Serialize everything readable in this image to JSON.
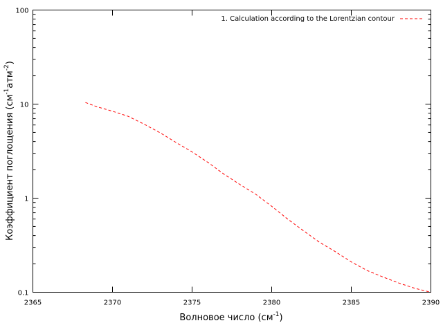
{
  "chart_data": {
    "type": "line",
    "title": "",
    "xlabel": {
      "main": "Волновое число (см",
      "sup": "-1",
      "tail": ")"
    },
    "ylabel": {
      "main": "Коэффициент поглощения (см",
      "sup1": "-1",
      "mid": "атм",
      "sup2": "-2",
      "tail": ")"
    },
    "xlim": [
      2365,
      2390
    ],
    "ylim": [
      0.1,
      100
    ],
    "y_scale": "log",
    "grid": false,
    "legend_position": "top-right",
    "x_ticks": [
      "2365",
      "2370",
      "2375",
      "2380",
      "2385",
      "2390"
    ],
    "y_ticks": [
      "0.1",
      "1",
      "10",
      "100"
    ],
    "series": [
      {
        "name": "1. Calculation according to the Lorentzian contour",
        "color": "#ff0000",
        "line_style": "dashed",
        "x": [
          2368.3,
          2369,
          2370,
          2371,
          2372,
          2373,
          2374,
          2375,
          2376,
          2377,
          2378,
          2379,
          2380,
          2381,
          2382,
          2383,
          2384,
          2385,
          2386,
          2387,
          2388,
          2389,
          2390
        ],
        "y": [
          10.4,
          9.4,
          8.4,
          7.4,
          6.1,
          4.95,
          3.9,
          3.1,
          2.4,
          1.8,
          1.4,
          1.1,
          0.82,
          0.6,
          0.45,
          0.34,
          0.27,
          0.21,
          0.17,
          0.145,
          0.125,
          0.11,
          0.1
        ]
      }
    ]
  }
}
